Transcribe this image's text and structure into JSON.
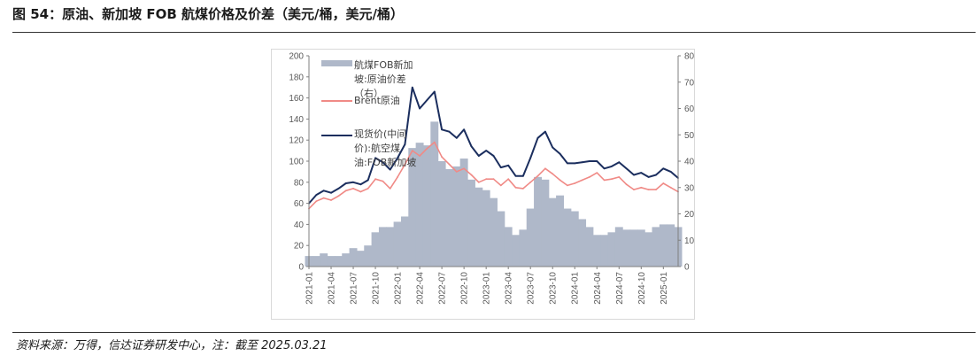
{
  "figure": {
    "title": "图 54：原油、新加坡 FOB 航煤价格及价差（美元/桶，美元/桶）",
    "source": "资料来源：万得，信达证券研发中心，注：截至 2025.03.21"
  },
  "chart_data": {
    "type": "line",
    "title": "原油、新加坡 FOB 航煤价格及价差（美元/桶，美元/桶）",
    "xlabel": "",
    "ylabel_left": "美元/桶",
    "ylabel_right": "美元/桶",
    "ylim_left": [
      0,
      200
    ],
    "ylim_right": [
      0,
      80
    ],
    "yticks_left": [
      "0",
      "20",
      "40",
      "60",
      "80",
      "100",
      "120",
      "140",
      "160",
      "180",
      "200"
    ],
    "yticks_right": [
      "0",
      "10",
      "20",
      "30",
      "40",
      "50",
      "60",
      "70",
      "80"
    ],
    "xticks": [
      "2021-01",
      "2021-04",
      "2021-07",
      "2021-10",
      "2022-01",
      "2022-04",
      "2022-07",
      "2022-10",
      "2023-01",
      "2023-04",
      "2023-07",
      "2023-10",
      "2024-01",
      "2024-04",
      "2024-07",
      "2024-10",
      "2025-01"
    ],
    "x": [
      "2021-01",
      "2021-02",
      "2021-03",
      "2021-04",
      "2021-05",
      "2021-06",
      "2021-07",
      "2021-08",
      "2021-09",
      "2021-10",
      "2021-11",
      "2021-12",
      "2022-01",
      "2022-02",
      "2022-03",
      "2022-04",
      "2022-05",
      "2022-06",
      "2022-07",
      "2022-08",
      "2022-09",
      "2022-10",
      "2022-11",
      "2022-12",
      "2023-01",
      "2023-02",
      "2023-03",
      "2023-04",
      "2023-05",
      "2023-06",
      "2023-07",
      "2023-08",
      "2023-09",
      "2023-10",
      "2023-11",
      "2023-12",
      "2024-01",
      "2024-02",
      "2024-03",
      "2024-04",
      "2024-05",
      "2024-06",
      "2024-07",
      "2024-08",
      "2024-09",
      "2024-10",
      "2024-11",
      "2024-12",
      "2025-01",
      "2025-02",
      "2025-03"
    ],
    "series": [
      {
        "name": "航煤FOB新加坡:原油价差（右）",
        "type": "area",
        "axis": "right",
        "color": "#afb8c9",
        "values": [
          4,
          4,
          5,
          4,
          4,
          5,
          7,
          6,
          8,
          13,
          15,
          15,
          17,
          19,
          45,
          47,
          46,
          55,
          40,
          37,
          38,
          41,
          33,
          30,
          29,
          26,
          21,
          15,
          12,
          14,
          22,
          34,
          33,
          26,
          27,
          22,
          21,
          18,
          15,
          12,
          12,
          13,
          15,
          14,
          14,
          14,
          13,
          15,
          16,
          16,
          15
        ]
      },
      {
        "name": "Brent原油",
        "type": "line",
        "axis": "left",
        "color": "#f08a86",
        "values": [
          55,
          62,
          65,
          63,
          67,
          72,
          74,
          71,
          74,
          83,
          81,
          74,
          85,
          97,
          110,
          105,
          112,
          118,
          104,
          97,
          90,
          93,
          87,
          80,
          83,
          83,
          77,
          83,
          75,
          74,
          80,
          86,
          93,
          88,
          82,
          77,
          79,
          82,
          85,
          89,
          82,
          83,
          85,
          78,
          73,
          75,
          73,
          73,
          79,
          75,
          71
        ]
      },
      {
        "name": "现货价(中间价):航空煤油:FOB新加坡",
        "type": "line",
        "axis": "left",
        "color": "#1b2e5e",
        "values": [
          60,
          68,
          72,
          70,
          74,
          79,
          80,
          78,
          82,
          103,
          99,
          92,
          103,
          116,
          170,
          150,
          158,
          166,
          130,
          128,
          122,
          130,
          114,
          105,
          110,
          105,
          94,
          96,
          86,
          86,
          103,
          122,
          128,
          113,
          107,
          98,
          98,
          99,
          100,
          100,
          93,
          95,
          99,
          93,
          87,
          89,
          85,
          87,
          93,
          90,
          84
        ]
      }
    ]
  },
  "legend": {
    "spread_label_lines": [
      "航煤FOB新加",
      "坡:原油价差",
      "（右）"
    ],
    "brent_label_lines": [
      "Brent原油"
    ],
    "jet_label_lines": [
      "现货价(中间",
      "价):航空煤",
      "油:FOB新加坡"
    ]
  }
}
